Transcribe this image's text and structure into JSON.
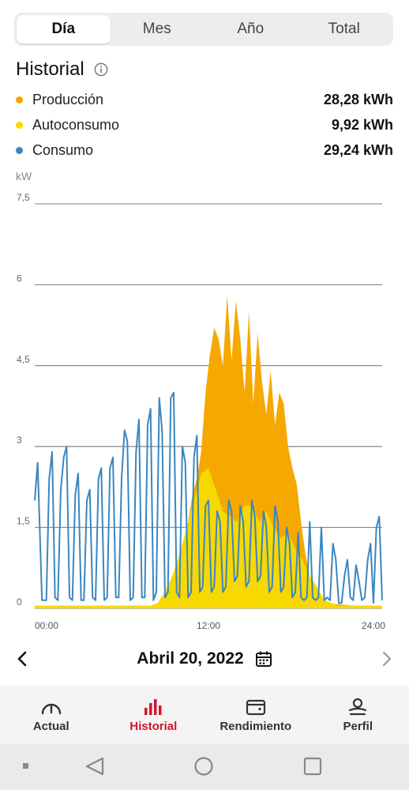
{
  "tabs": [
    {
      "label": "Día",
      "active": true
    },
    {
      "label": "Mes",
      "active": false
    },
    {
      "label": "Año",
      "active": false
    },
    {
      "label": "Total",
      "active": false
    }
  ],
  "history": {
    "title": "Historial",
    "legend": [
      {
        "label": "Producción",
        "value": "28,28 kWh",
        "color": "#f5a800"
      },
      {
        "label": "Autoconsumo",
        "value": "9,92 kWh",
        "color": "#f7d800"
      },
      {
        "label": "Consumo",
        "value": "29,24 kWh",
        "color": "#3a86c0"
      }
    ]
  },
  "chart_data": {
    "type": "area",
    "ylabel": "kW",
    "y_ticks": [
      "7,5",
      "6",
      "4,5",
      "3",
      "1,5",
      "0"
    ],
    "x_ticks": [
      "00:00",
      "12:00",
      "24:00"
    ],
    "ylim": [
      0,
      7.5
    ],
    "xlim": [
      0,
      24
    ],
    "grid": true,
    "series": [
      {
        "name": "Producción",
        "color": "#f5a800",
        "x": [
          0,
          8.5,
          9.0,
          9.5,
          10.0,
          10.3,
          10.6,
          10.9,
          11.2,
          11.5,
          11.8,
          12.1,
          12.4,
          12.7,
          13.0,
          13.3,
          13.6,
          13.9,
          14.2,
          14.5,
          14.8,
          15.1,
          15.4,
          15.7,
          16.0,
          16.3,
          16.6,
          16.9,
          17.2,
          17.5,
          17.8,
          18.1,
          18.4,
          18.7,
          19.0,
          19.5,
          20.0,
          24
        ],
        "y": [
          0,
          0,
          0.1,
          0.3,
          0.7,
          1.2,
          1.6,
          2.1,
          2.4,
          2.9,
          4.0,
          4.7,
          5.2,
          5.0,
          4.5,
          5.8,
          4.6,
          5.7,
          5.0,
          4.0,
          5.5,
          3.8,
          5.1,
          4.2,
          3.6,
          4.4,
          3.4,
          4.0,
          3.8,
          3.0,
          2.6,
          2.3,
          1.6,
          1.0,
          0.6,
          0.3,
          0.1,
          0
        ]
      },
      {
        "name": "Autoconsumo",
        "color": "#f7d800",
        "x": [
          0,
          8.0,
          8.5,
          9.0,
          9.5,
          10.0,
          10.5,
          11.0,
          11.5,
          12.0,
          12.5,
          13.0,
          13.5,
          14.0,
          14.5,
          15.0,
          15.5,
          16.0,
          16.5,
          17.0,
          17.5,
          18.0,
          18.5,
          19.0,
          19.5,
          20.0,
          21.0,
          24
        ],
        "y": [
          0.05,
          0.05,
          0.1,
          0.3,
          0.6,
          1.0,
          1.5,
          2.0,
          2.5,
          2.6,
          2.2,
          1.8,
          1.7,
          1.6,
          1.9,
          1.9,
          1.6,
          1.8,
          1.5,
          1.3,
          1.4,
          1.1,
          0.9,
          0.6,
          0.4,
          0.15,
          0.05,
          0.05
        ]
      },
      {
        "name": "Consumo",
        "color": "#3a86c0",
        "x": [
          0,
          0.2,
          0.5,
          0.8,
          1.0,
          1.2,
          1.4,
          1.6,
          1.8,
          2.0,
          2.2,
          2.4,
          2.6,
          2.8,
          3.0,
          3.2,
          3.4,
          3.6,
          3.8,
          4.0,
          4.2,
          4.4,
          4.6,
          4.8,
          5.0,
          5.2,
          5.4,
          5.6,
          5.8,
          6.0,
          6.2,
          6.4,
          6.6,
          6.8,
          7.0,
          7.2,
          7.4,
          7.6,
          7.8,
          8.0,
          8.2,
          8.4,
          8.6,
          8.8,
          9.0,
          9.2,
          9.4,
          9.6,
          9.8,
          10.0,
          10.2,
          10.4,
          10.6,
          10.8,
          11.0,
          11.2,
          11.4,
          11.6,
          11.8,
          12.0,
          12.2,
          12.4,
          12.6,
          12.8,
          13.0,
          13.2,
          13.4,
          13.6,
          13.8,
          14.0,
          14.2,
          14.4,
          14.6,
          14.8,
          15.0,
          15.2,
          15.4,
          15.6,
          15.8,
          16.0,
          16.2,
          16.4,
          16.6,
          16.8,
          17.0,
          17.2,
          17.4,
          17.6,
          17.8,
          18.0,
          18.2,
          18.4,
          18.6,
          18.8,
          19.0,
          19.2,
          19.4,
          19.6,
          19.8,
          20.0,
          20.2,
          20.4,
          20.6,
          20.8,
          21.0,
          21.2,
          21.4,
          21.6,
          21.8,
          22.0,
          22.2,
          22.4,
          22.6,
          22.8,
          23.0,
          23.2,
          23.4,
          23.6,
          23.8,
          24.0
        ],
        "y": [
          2.0,
          2.7,
          0.15,
          0.15,
          2.4,
          2.9,
          0.2,
          0.15,
          2.2,
          2.8,
          3.0,
          0.2,
          0.15,
          2.1,
          2.5,
          0.15,
          0.15,
          2.0,
          2.2,
          0.2,
          0.15,
          2.4,
          2.6,
          0.15,
          0.2,
          2.6,
          2.8,
          0.2,
          0.2,
          2.4,
          3.3,
          3.1,
          0.15,
          0.2,
          2.9,
          3.5,
          0.2,
          0.2,
          3.4,
          3.7,
          0.15,
          0.3,
          3.9,
          3.3,
          0.2,
          0.3,
          3.9,
          4.0,
          0.3,
          0.2,
          3.0,
          2.7,
          0.2,
          0.3,
          2.8,
          3.2,
          0.3,
          0.4,
          1.9,
          2.0,
          0.3,
          0.4,
          1.8,
          1.6,
          0.3,
          0.4,
          2.0,
          1.8,
          0.5,
          0.6,
          1.9,
          1.6,
          0.4,
          0.5,
          2.0,
          1.7,
          0.5,
          0.6,
          1.8,
          1.5,
          0.3,
          0.4,
          1.9,
          1.6,
          0.3,
          0.4,
          1.5,
          1.2,
          0.2,
          0.3,
          1.4,
          0.2,
          0.15,
          0.2,
          1.6,
          0.2,
          0.15,
          0.2,
          1.5,
          0.15,
          0.2,
          0.15,
          1.2,
          0.9,
          0.1,
          0.1,
          0.6,
          0.9,
          0.2,
          0.15,
          0.8,
          0.5,
          0.15,
          0.2,
          0.9,
          1.2,
          0.1,
          1.5,
          1.7,
          0.15
        ]
      }
    ]
  },
  "date_nav": {
    "date": "Abril 20, 2022",
    "prev_icon": "chevron-left-icon",
    "next_icon": "chevron-right-icon",
    "calendar_icon": "calendar-icon"
  },
  "bottom_nav": [
    {
      "label": "Actual",
      "icon": "gauge-icon",
      "active": false
    },
    {
      "label": "Historial",
      "icon": "bar-chart-icon",
      "active": true
    },
    {
      "label": "Rendimiento",
      "icon": "wallet-icon",
      "active": false
    },
    {
      "label": "Perfil",
      "icon": "user-icon",
      "active": false
    }
  ],
  "colors": {
    "accent": "#d0152b",
    "production": "#f5a800",
    "self_consumption": "#f7d800",
    "consumption": "#3a86c0"
  }
}
